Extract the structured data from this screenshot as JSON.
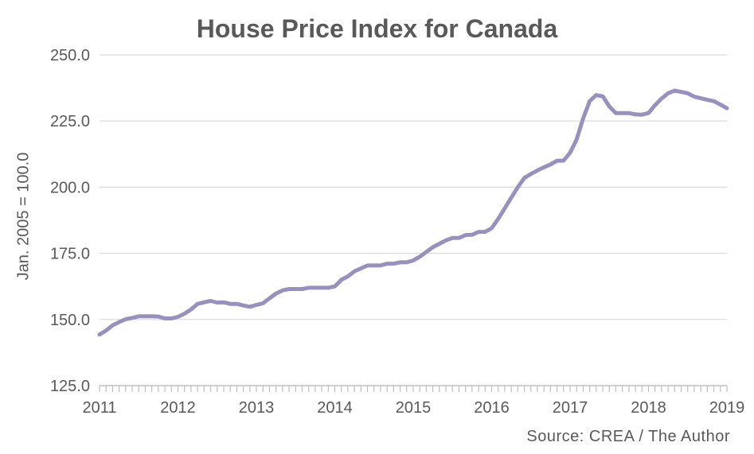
{
  "chart_data": {
    "type": "line",
    "title": "House Price Index for Canada",
    "ylabel": "Jan. 2005 = 100.0",
    "xlabel": "",
    "source": "Source: CREA / The Author",
    "ylim": [
      125,
      250
    ],
    "yticks": [
      "125.0",
      "150.0",
      "175.0",
      "200.0",
      "225.0",
      "250.0"
    ],
    "xlim": [
      2011,
      2019
    ],
    "xticks": [
      "2011",
      "2012",
      "2013",
      "2014",
      "2015",
      "2016",
      "2017",
      "2018",
      "2019"
    ],
    "grid": true,
    "line_color": "#9990C0",
    "x": [
      2011.0,
      2011.083,
      2011.167,
      2011.25,
      2011.333,
      2011.417,
      2011.5,
      2011.583,
      2011.667,
      2011.75,
      2011.833,
      2011.917,
      2012.0,
      2012.083,
      2012.167,
      2012.25,
      2012.333,
      2012.417,
      2012.5,
      2012.583,
      2012.667,
      2012.75,
      2012.833,
      2012.917,
      2013.0,
      2013.083,
      2013.167,
      2013.25,
      2013.333,
      2013.417,
      2013.5,
      2013.583,
      2013.667,
      2013.75,
      2013.833,
      2013.917,
      2014.0,
      2014.083,
      2014.167,
      2014.25,
      2014.333,
      2014.417,
      2014.5,
      2014.583,
      2014.667,
      2014.75,
      2014.833,
      2014.917,
      2015.0,
      2015.083,
      2015.167,
      2015.25,
      2015.333,
      2015.417,
      2015.5,
      2015.583,
      2015.667,
      2015.75,
      2015.833,
      2015.917,
      2016.0,
      2016.083,
      2016.167,
      2016.25,
      2016.333,
      2016.417,
      2016.5,
      2016.583,
      2016.667,
      2016.75,
      2016.833,
      2016.917,
      2017.0,
      2017.083,
      2017.167,
      2017.25,
      2017.333,
      2017.417,
      2017.5,
      2017.583,
      2017.667,
      2017.75,
      2017.833,
      2017.917,
      2018.0,
      2018.083,
      2018.167,
      2018.25,
      2018.333,
      2018.417,
      2018.5,
      2018.583,
      2018.667,
      2018.75,
      2018.833,
      2018.917,
      2019.0
    ],
    "values": [
      144.3,
      145.8,
      147.8,
      149.0,
      150.1,
      150.6,
      151.2,
      151.2,
      151.2,
      151.1,
      150.4,
      150.4,
      151.0,
      152.2,
      153.8,
      155.9,
      156.5,
      157.0,
      156.4,
      156.5,
      155.9,
      155.9,
      155.3,
      154.8,
      155.5,
      156.1,
      158.0,
      159.8,
      161.0,
      161.5,
      161.5,
      161.5,
      162.0,
      162.0,
      162.0,
      162.0,
      162.5,
      165.0,
      166.3,
      168.2,
      169.3,
      170.4,
      170.4,
      170.4,
      171.1,
      171.1,
      171.6,
      171.6,
      172.3,
      173.7,
      175.5,
      177.3,
      178.6,
      179.9,
      180.8,
      180.8,
      181.9,
      182.0,
      183.1,
      183.1,
      184.5,
      188.0,
      192.0,
      196.0,
      200.0,
      203.5,
      205.0,
      206.3,
      207.5,
      208.6,
      210.0,
      210.0,
      213.0,
      218.0,
      226.0,
      232.5,
      234.8,
      234.3,
      230.5,
      228.0,
      228.0,
      228.0,
      227.5,
      227.4,
      228.0,
      231.0,
      233.5,
      235.5,
      236.5,
      236.0,
      235.5,
      234.2,
      233.6,
      233.0,
      232.5,
      231.2,
      229.8
    ]
  }
}
